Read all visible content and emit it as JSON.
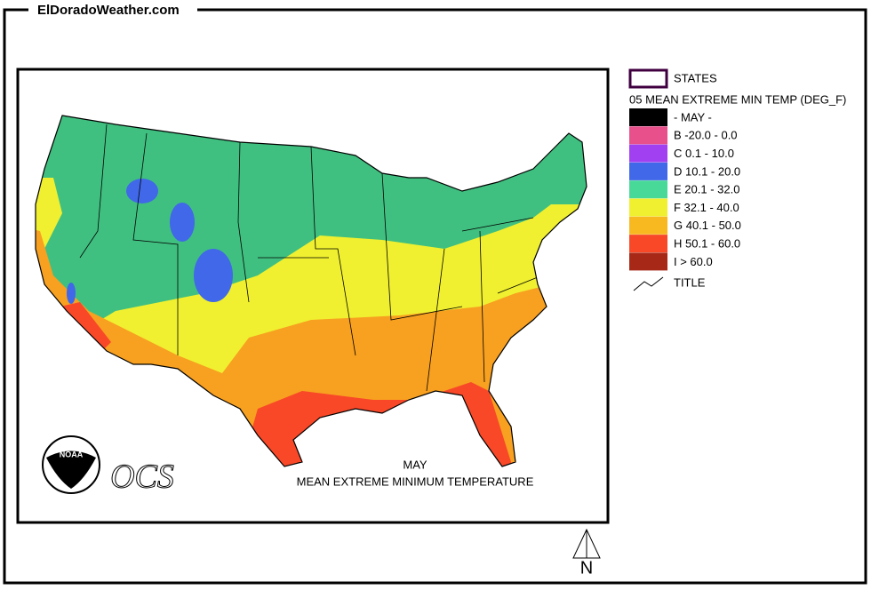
{
  "site": "ElDoradoWeather.com",
  "legend": {
    "states_label": "STATES",
    "layer_title": "05 MEAN EXTREME MIN TEMP (DEG_F)",
    "items": [
      {
        "label": "- MAY -",
        "color": "#000000"
      },
      {
        "label": "B -20.0 - 0.0",
        "color": "#e8508c"
      },
      {
        "label": "C 0.1 - 10.0",
        "color": "#a040f0"
      },
      {
        "label": "D 10.1 - 20.0",
        "color": "#4068e8"
      },
      {
        "label": "E 20.1 - 32.0",
        "color": "#48d898"
      },
      {
        "label": "F 32.1 - 40.0",
        "color": "#f0f030"
      },
      {
        "label": "G 40.1 - 50.0",
        "color": "#f8b820"
      },
      {
        "label": "H 50.1 - 60.0",
        "color": "#f84828"
      },
      {
        "label": "I > 60.0",
        "color": "#a82818"
      }
    ],
    "title_label": "TITLE"
  },
  "map": {
    "caption": [
      "MAY",
      "MEAN EXTREME MINIMUM TEMPERATURE"
    ],
    "logo_text": "NOAA",
    "ocs": "OCS"
  },
  "north": "N"
}
